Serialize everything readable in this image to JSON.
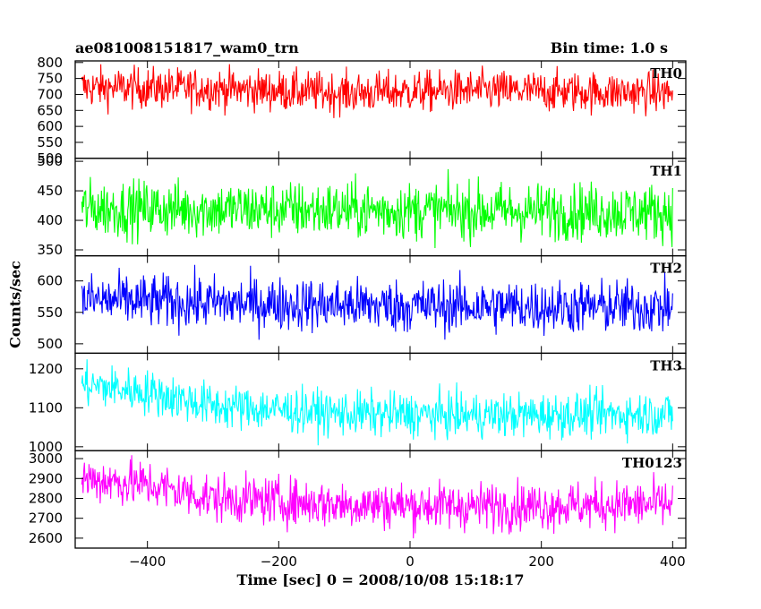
{
  "header": {
    "title": "ae081008151817_wam0_trn",
    "bin_time": "Bin time: 1.0 s"
  },
  "axes": {
    "xlabel": "Time [sec] 0 = 2008/10/08 15:18:17",
    "ylabel": "Counts/sec"
  },
  "chart_data": {
    "type": "line",
    "title": "ae081008151817_wam0_trn",
    "xlabel": "Time [sec] 0 = 2008/10/08 15:18:17",
    "ylabel": "Counts/sec",
    "xlim": [
      -510,
      420
    ],
    "x_ticks": [
      -400,
      -200,
      0,
      200,
      400
    ],
    "bin_time_s": 1.0,
    "x_start": -500,
    "x_end": 400,
    "series": [
      {
        "name": "TH0",
        "color": "#ff0000",
        "ylim": [
          500,
          805
        ],
        "y_ticks": [
          500,
          550,
          600,
          650,
          700,
          750,
          800
        ],
        "profile": [
          [
            -500,
            722
          ],
          [
            -300,
            718
          ],
          [
            -100,
            705
          ],
          [
            100,
            712
          ],
          [
            400,
            705
          ]
        ],
        "noise": 45
      },
      {
        "name": "TH1",
        "color": "#00ff00",
        "ylim": [
          340,
          505
        ],
        "y_ticks": [
          350,
          400,
          450,
          500
        ],
        "profile": [
          [
            -500,
            420
          ],
          [
            -200,
            418
          ],
          [
            100,
            416
          ],
          [
            400,
            414
          ]
        ],
        "noise": 34
      },
      {
        "name": "TH2",
        "color": "#0000ff",
        "ylim": [
          485,
          640
        ],
        "y_ticks": [
          500,
          550,
          600
        ],
        "profile": [
          [
            -500,
            570
          ],
          [
            -300,
            565
          ],
          [
            0,
            560
          ],
          [
            400,
            558
          ]
        ],
        "noise": 30
      },
      {
        "name": "TH3",
        "color": "#00ffff",
        "ylim": [
          990,
          1240
        ],
        "y_ticks": [
          1000,
          1100,
          1200
        ],
        "profile": [
          [
            -500,
            1160
          ],
          [
            -400,
            1140
          ],
          [
            -300,
            1105
          ],
          [
            -100,
            1085
          ],
          [
            100,
            1080
          ],
          [
            400,
            1085
          ]
        ],
        "noise": 40
      },
      {
        "name": "TH0123",
        "color": "#ff00ff",
        "ylim": [
          2550,
          3040
        ],
        "y_ticks": [
          2600,
          2700,
          2800,
          2900,
          3000
        ],
        "profile": [
          [
            -500,
            2900
          ],
          [
            -400,
            2870
          ],
          [
            -300,
            2800
          ],
          [
            -100,
            2770
          ],
          [
            100,
            2760
          ],
          [
            400,
            2770
          ]
        ],
        "noise": 85
      }
    ]
  }
}
